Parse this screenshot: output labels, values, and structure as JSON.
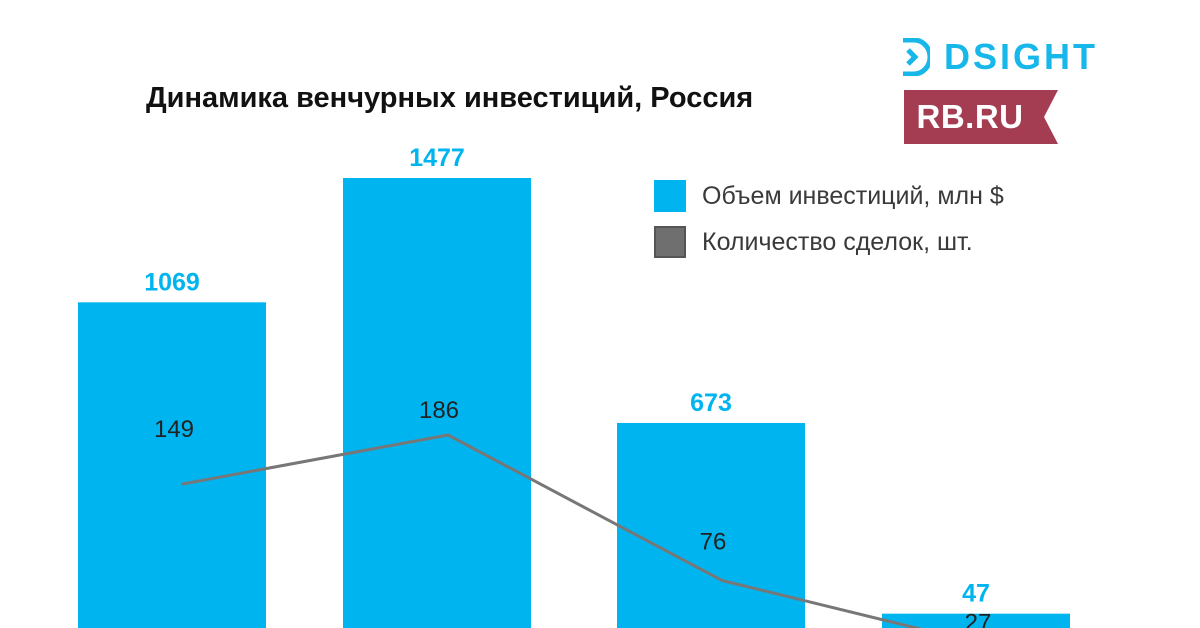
{
  "chart_data": {
    "type": "bar",
    "title": "Динамика венчурных инвестиций, Россия",
    "categories": [
      "",
      "",
      "",
      ""
    ],
    "series": [
      {
        "name": "Объем инвестиций, млн $",
        "type": "bar",
        "values": [
          1069,
          1477,
          673,
          47
        ],
        "color": "#00b5ef"
      },
      {
        "name": "Количество сделок, шт.",
        "type": "line",
        "values": [
          149,
          186,
          76,
          27
        ],
        "color": "#777777"
      }
    ],
    "legend_position": "top-right",
    "grid": false
  },
  "logos": {
    "dsight": "DSIGHT",
    "rb": "RB.RU"
  },
  "colors": {
    "bar": "#00b5ef",
    "line": "#777777",
    "bar_label": "#00b5ef",
    "line_label": "#222222",
    "dsight": "#17b7ea",
    "rb_background": "#a43d51"
  }
}
